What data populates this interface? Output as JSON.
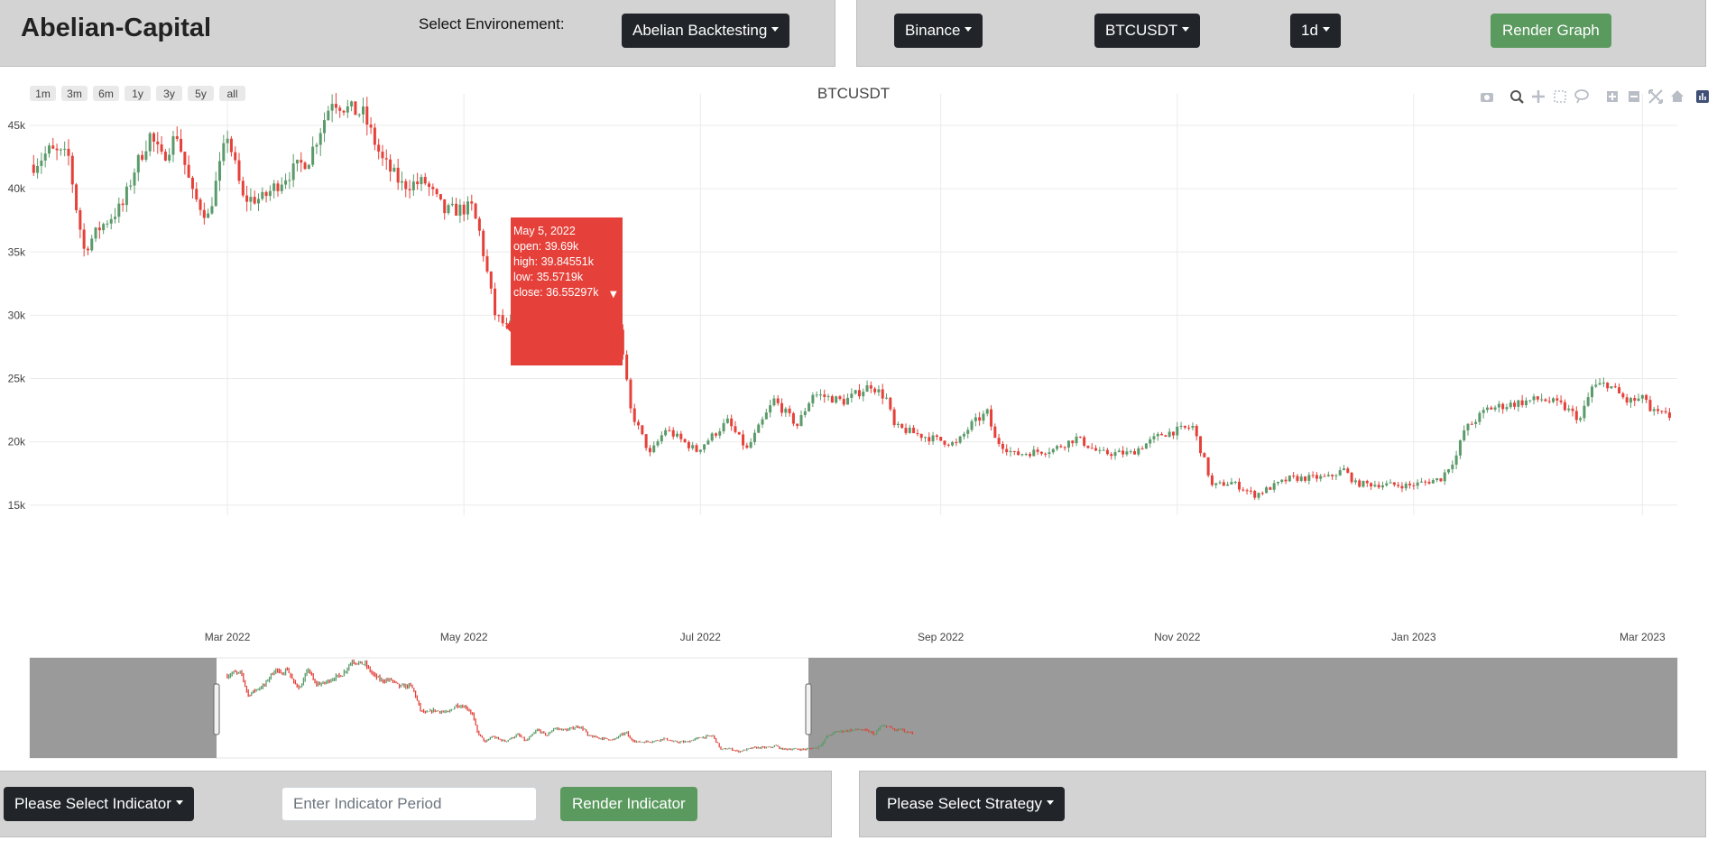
{
  "header": {
    "app_title": "Abelian-Capital",
    "env_label": "Select Environement:",
    "env_value": "Abelian Backtesting",
    "exchange": "Binance",
    "pair": "BTCUSDT",
    "interval": "1d",
    "render_graph": "Render Graph"
  },
  "footer": {
    "indicator_select": "Please Select Indicator",
    "indicator_period_placeholder": "Enter Indicator Period",
    "render_indicator": "Render Indicator",
    "strategy_select": "Please Select Strategy"
  },
  "range_selector": [
    "1m",
    "3m",
    "6m",
    "1y",
    "3y",
    "5y",
    "all"
  ],
  "modebar_icons": [
    "camera-icon",
    "zoom-icon",
    "pan-icon",
    "box-select-icon",
    "lasso-icon",
    "zoom-in-icon",
    "zoom-out-icon",
    "autoscale-icon",
    "reset-axes-icon",
    "plotly-logo-icon"
  ],
  "colors": {
    "increasing": "#5b9a6a",
    "decreasing": "#e5413a",
    "panel": "#d3d3d3",
    "button_dark": "#212529",
    "button_green": "#5a9a5e"
  },
  "tooltip": {
    "date": "May 5, 2022",
    "open": "open: 39.69k",
    "high": "high: 39.84551k",
    "low": "low: 35.5719k",
    "close": "close: 36.55297k"
  },
  "chart_data": {
    "type": "candlestick",
    "title": "BTCUSDT",
    "x_ticks": [
      "Mar 2022",
      "May 2022",
      "Jul 2022",
      "Sep 2022",
      "Nov 2022",
      "Jan 2023",
      "Mar 2023"
    ],
    "y_ticks": [
      "15k",
      "20k",
      "25k",
      "30k",
      "35k",
      "40k",
      "45k"
    ],
    "x_range": [
      "2022-01-09",
      "2023-03-10"
    ],
    "y_range": [
      14200,
      47500
    ],
    "anchors": [
      [
        "2022-01-10",
        41900
      ],
      [
        "2022-01-14",
        43000
      ],
      [
        "2022-01-19",
        42500
      ],
      [
        "2022-01-21",
        38500
      ],
      [
        "2022-01-23",
        35200
      ],
      [
        "2022-01-27",
        36900
      ],
      [
        "2022-02-02",
        38700
      ],
      [
        "2022-02-05",
        41500
      ],
      [
        "2022-02-09",
        44200
      ],
      [
        "2022-02-12",
        42400
      ],
      [
        "2022-02-16",
        44300
      ],
      [
        "2022-02-20",
        39500
      ],
      [
        "2022-02-24",
        37800
      ],
      [
        "2022-03-01",
        44300
      ],
      [
        "2022-03-05",
        39200
      ],
      [
        "2022-03-10",
        39200
      ],
      [
        "2022-03-16",
        41000
      ],
      [
        "2022-03-22",
        42400
      ],
      [
        "2022-03-28",
        47100
      ],
      [
        "2022-04-01",
        46300
      ],
      [
        "2022-04-05",
        45900
      ],
      [
        "2022-04-10",
        42200
      ],
      [
        "2022-04-15",
        40300
      ],
      [
        "2022-04-21",
        40500
      ],
      [
        "2022-04-26",
        38200
      ],
      [
        "2022-05-03",
        38500
      ],
      [
        "2022-05-05",
        36552
      ],
      [
        "2022-05-09",
        30100
      ],
      [
        "2022-05-12",
        29000
      ],
      [
        "2022-05-17",
        30000
      ],
      [
        "2022-05-26",
        29200
      ],
      [
        "2022-05-31",
        31800
      ],
      [
        "2022-06-06",
        31200
      ],
      [
        "2022-06-10",
        28700
      ],
      [
        "2022-06-13",
        22500
      ],
      [
        "2022-06-18",
        19000
      ],
      [
        "2022-06-22",
        21000
      ],
      [
        "2022-06-30",
        19300
      ],
      [
        "2022-07-08",
        21600
      ],
      [
        "2022-07-13",
        19400
      ],
      [
        "2022-07-20",
        23300
      ],
      [
        "2022-07-26",
        21300
      ],
      [
        "2022-07-30",
        23800
      ],
      [
        "2022-08-07",
        23200
      ],
      [
        "2022-08-14",
        24500
      ],
      [
        "2022-08-18",
        23400
      ],
      [
        "2022-08-20",
        21200
      ],
      [
        "2022-08-27",
        20500
      ],
      [
        "2022-09-05",
        19800
      ],
      [
        "2022-09-09",
        21400
      ],
      [
        "2022-09-13",
        22300
      ],
      [
        "2022-09-15",
        20200
      ],
      [
        "2022-09-20",
        19000
      ],
      [
        "2022-09-30",
        19400
      ],
      [
        "2022-10-06",
        20300
      ],
      [
        "2022-10-12",
        19100
      ],
      [
        "2022-10-20",
        19100
      ],
      [
        "2022-10-28",
        20600
      ],
      [
        "2022-11-05",
        21200
      ],
      [
        "2022-11-08",
        18500
      ],
      [
        "2022-11-10",
        16500
      ],
      [
        "2022-11-15",
        16800
      ],
      [
        "2022-11-21",
        15800
      ],
      [
        "2022-11-30",
        17100
      ],
      [
        "2022-12-10",
        17200
      ],
      [
        "2022-12-14",
        17800
      ],
      [
        "2022-12-17",
        16700
      ],
      [
        "2022-12-31",
        16550
      ],
      [
        "2023-01-08",
        17100
      ],
      [
        "2023-01-12",
        18900
      ],
      [
        "2023-01-14",
        20900
      ],
      [
        "2023-01-20",
        22600
      ],
      [
        "2023-01-28",
        23100
      ],
      [
        "2023-02-03",
        23400
      ],
      [
        "2023-02-08",
        22900
      ],
      [
        "2023-02-13",
        21800
      ],
      [
        "2023-02-16",
        24300
      ],
      [
        "2023-02-20",
        24600
      ],
      [
        "2023-02-25",
        23200
      ],
      [
        "2023-03-02",
        23400
      ],
      [
        "2023-03-03",
        22400
      ],
      [
        "2023-03-08",
        22000
      ]
    ],
    "range_slider": {
      "visible_from": "2022-01-09",
      "visible_to": "2023-03-10"
    }
  }
}
